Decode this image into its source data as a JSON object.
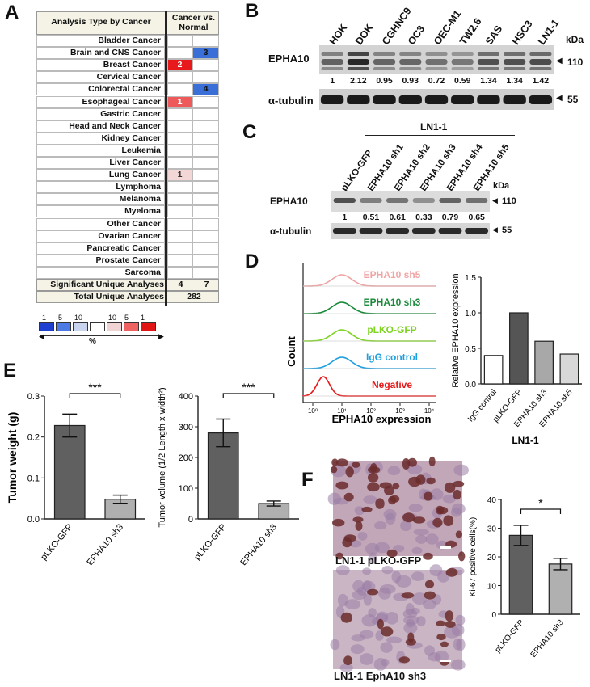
{
  "panels": [
    "A",
    "B",
    "C",
    "D",
    "E",
    "F"
  ],
  "panel_a": {
    "header_type": "Analysis Type by Cancer",
    "header_cancer": "Cancer",
    "header_vs": "vs.",
    "header_normal": "Normal",
    "rows": [
      {
        "label": "Bladder Cancer",
        "up": "",
        "down": ""
      },
      {
        "label": "Brain and CNS Cancer",
        "up": "",
        "down": "3"
      },
      {
        "label": "Breast Cancer",
        "up": "2",
        "down": ""
      },
      {
        "label": "Cervical Cancer",
        "up": "",
        "down": ""
      },
      {
        "label": "Colorectal Cancer",
        "up": "",
        "down": "4"
      },
      {
        "label": "Esophageal Cancer",
        "up": "1",
        "down": ""
      },
      {
        "label": "Gastric Cancer",
        "up": "",
        "down": ""
      },
      {
        "label": "Head and Neck Cancer",
        "up": "",
        "down": ""
      },
      {
        "label": "Kidney Cancer",
        "up": "",
        "down": ""
      },
      {
        "label": "Leukemia",
        "up": "",
        "down": ""
      },
      {
        "label": "Liver Cancer",
        "up": "",
        "down": ""
      },
      {
        "label": "Lung Cancer",
        "up": "1",
        "down": ""
      },
      {
        "label": "Lymphoma",
        "up": "",
        "down": ""
      },
      {
        "label": "Melanoma",
        "up": "",
        "down": ""
      },
      {
        "label": "Myeloma",
        "up": "",
        "down": ""
      },
      {
        "label": "Other Cancer",
        "up": "",
        "down": ""
      },
      {
        "label": "Ovarian Cancer",
        "up": "",
        "down": ""
      },
      {
        "label": "Pancreatic Cancer",
        "up": "",
        "down": ""
      },
      {
        "label": "Prostate Cancer",
        "up": "",
        "down": ""
      },
      {
        "label": "Sarcoma",
        "up": "",
        "down": ""
      }
    ],
    "cell_colors": {
      "Brain and CNS Cancer": "#3a6fd8",
      "Breast Cancer": "#e8191c",
      "Colorectal Cancer": "#3a6fd8",
      "Esophageal Cancer": "#ee5a5a",
      "Lung Cancer": "#f3d6d6"
    },
    "significant_label": "Significant Unique Analyses",
    "significant_up": "4",
    "significant_down": "7",
    "total_label": "Total Unique Analyses",
    "total_value": "282",
    "legend_ticks": [
      "1",
      "5",
      "10",
      "10",
      "5",
      "1"
    ],
    "legend_colors": [
      "#1f3fd0",
      "#4d7be6",
      "#c9d4ee",
      "#ffffff",
      "#f2d3d3",
      "#ee6262",
      "#e21515"
    ],
    "legend_unit": "%"
  },
  "panel_b": {
    "lanes": [
      "HOK",
      "DOK",
      "CGHNC9",
      "OC3",
      "OEC-M1",
      "TW2.6",
      "SAS",
      "HSC3",
      "LN1-1"
    ],
    "target": "EPHA10",
    "control": "α-tubulin",
    "ratios": [
      "1",
      "2.12",
      "0.95",
      "0.93",
      "0.72",
      "0.59",
      "1.34",
      "1.34",
      "1.42"
    ],
    "kda": "kDa",
    "mw_target": "110",
    "mw_control": "55"
  },
  "panel_c": {
    "group": "LN1-1",
    "lanes": [
      "pLKO-GFP",
      "EPHA10 sh1",
      "EPHA10 sh2",
      "EPHA10 sh3",
      "EPHA10 sh4",
      "EPHA10 sh5"
    ],
    "target": "EPHA10",
    "control": "α-tubulin",
    "ratios": [
      "1",
      "0.51",
      "0.61",
      "0.33",
      "0.79",
      "0.65"
    ],
    "kda": "kDa",
    "mw_target": "110",
    "mw_control": "55"
  },
  "panel_d": {
    "histo_labels": [
      {
        "text": "EPHA10 sh5",
        "color": "#f0a5a5"
      },
      {
        "text": "EPHA10 sh3",
        "color": "#1a8a3a"
      },
      {
        "text": "pLKO-GFP",
        "color": "#7ed321"
      },
      {
        "text": "IgG control",
        "color": "#1ea0e0"
      },
      {
        "text": "Negative",
        "color": "#e81818"
      }
    ],
    "y_label": "Count",
    "x_label": "EPHA10 expression",
    "x_ticks": [
      "10⁰",
      "10¹",
      "10²",
      "10³",
      "10⁴"
    ],
    "bar_group": "LN1-1"
  },
  "panel_e": {
    "significance": "***",
    "weight_ylabel": "Tumor weight (g)",
    "volume_ylabel": "Tumor volume (1/2 Length x width²)"
  },
  "panel_f": {
    "caption_top": "LN1-1 pLKO-GFP",
    "caption_bottom": "LN1-1 EphA10 sh3",
    "significance": "*",
    "ylabel": "Ki-67 positive cells(%)"
  },
  "chart_data": [
    {
      "id": "D-bar",
      "type": "bar",
      "categories": [
        "IgG control",
        "pLKO-GFP",
        "EPHA10 sh3",
        "EPHA10 sh5"
      ],
      "values": [
        0.4,
        1.0,
        0.6,
        0.42
      ],
      "colors": [
        "#ffffff",
        "#555555",
        "#a8a8a8",
        "#d8d8d8"
      ],
      "ylabel": "Relative EPHA10 expression",
      "ylim": [
        0,
        1.5
      ],
      "yticks": [
        "0.0",
        "0.5",
        "1.0",
        "1.5"
      ]
    },
    {
      "id": "E-weight",
      "type": "bar",
      "categories": [
        "pLKO-GFP",
        "EPHA10 sh3"
      ],
      "values": [
        0.228,
        0.048
      ],
      "errors": [
        0.028,
        0.01
      ],
      "colors": [
        "#606060",
        "#b0b0b0"
      ],
      "ylabel": "Tumor weight (g)",
      "ylim": [
        0,
        0.3
      ],
      "yticks": [
        "0.0",
        "0.1",
        "0.2",
        "0.3"
      ]
    },
    {
      "id": "E-volume",
      "type": "bar",
      "categories": [
        "pLKO-GFP",
        "EPHA10 sh3"
      ],
      "values": [
        280,
        50
      ],
      "errors": [
        45,
        8
      ],
      "colors": [
        "#606060",
        "#b0b0b0"
      ],
      "ylabel": "Tumor volume (1/2 Length x width²)",
      "ylim": [
        0,
        400
      ],
      "yticks": [
        "0",
        "100",
        "200",
        "300",
        "400"
      ]
    },
    {
      "id": "F-ki67",
      "type": "bar",
      "categories": [
        "pLKO-GFP",
        "EPHA10 sh3"
      ],
      "values": [
        27.5,
        17.5
      ],
      "errors": [
        3.5,
        2.0
      ],
      "colors": [
        "#606060",
        "#b0b0b0"
      ],
      "ylabel": "Ki-67 positive cells(%)",
      "ylim": [
        0,
        40
      ],
      "yticks": [
        "0",
        "10",
        "20",
        "30",
        "40"
      ]
    }
  ]
}
